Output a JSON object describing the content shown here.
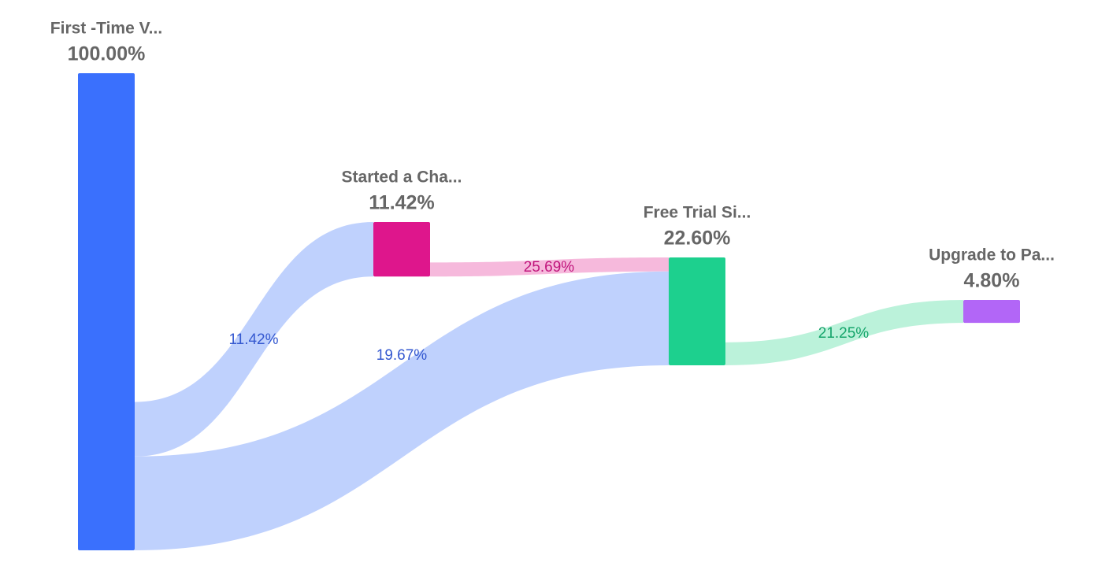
{
  "chart_data": {
    "type": "sankey",
    "nodes": {
      "names": [
        "First -Time V...",
        "Started a Cha...",
        "Free Trial Si...",
        "Upgrade to Pa..."
      ],
      "values": [
        100,
        11.42,
        22.6,
        4.8
      ],
      "value_labels": [
        "100.00%",
        "11.42%",
        "22.60%",
        "4.80%"
      ],
      "colors": [
        "#3a70fd",
        "#de168c",
        "#1dd08e",
        "#b266f7"
      ]
    },
    "links": {
      "source": [
        0,
        1,
        0,
        2
      ],
      "target": [
        1,
        2,
        2,
        3
      ],
      "values": [
        11.42,
        25.69,
        19.67,
        21.25
      ],
      "value_labels": [
        "11.42%",
        "25.69%",
        "19.67%",
        "21.25%"
      ],
      "colors": [
        "#bfd1fd",
        "#f6b9dc",
        "#bfd1fd",
        "#bbf2da"
      ],
      "label_colors": [
        "#3559d0",
        "#c0157c",
        "#3559d0",
        "#15a56b"
      ]
    }
  }
}
